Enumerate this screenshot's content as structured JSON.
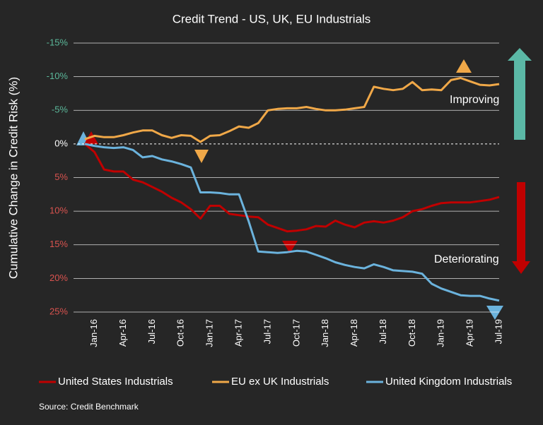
{
  "chart_data": {
    "type": "line",
    "title": "Credit Trend - US, UK, EU Industrials",
    "y_label": "Cumulative Change in Credit Risk (%)",
    "source": "Source: Credit Benchmark",
    "annotations": [
      "Improving",
      "Deteriorating"
    ],
    "categories": [
      null,
      "Jan-16",
      null,
      null,
      "Apr-16",
      null,
      null,
      "Jul-16",
      null,
      null,
      "Oct-16",
      null,
      null,
      "Jan-17",
      null,
      null,
      "Apr-17",
      null,
      null,
      "Jul-17",
      null,
      null,
      "Oct-17",
      null,
      null,
      "Jan-18",
      null,
      null,
      "Apr-18",
      null,
      null,
      "Jul-18",
      null,
      null,
      "Oct-18",
      null,
      null,
      "Jan-19",
      null,
      null,
      "Apr-19",
      null,
      null,
      "Jul-19"
    ],
    "series": [
      {
        "name": "United States Industrials",
        "color": "#c00000",
        "values": [
          0,
          1.2,
          3.8,
          4.1,
          4.1,
          5.3,
          5.7,
          6.4,
          7.1,
          8.0,
          8.7,
          9.7,
          11.1,
          9.2,
          9.2,
          10.4,
          10.6,
          10.8,
          10.9,
          12.0,
          12.5,
          13.0,
          12.9,
          12.7,
          12.2,
          12.3,
          11.4,
          12.0,
          12.4,
          11.7,
          11.5,
          11.7,
          11.4,
          10.9,
          10.0,
          9.7,
          9.2,
          8.8,
          8.7,
          8.7,
          8.7,
          8.5,
          8.3,
          7.9
        ]
      },
      {
        "name": "EU ex UK Industrials",
        "color": "#f0a848",
        "values": [
          -0.7,
          -1.2,
          -1.0,
          -1.0,
          -1.3,
          -1.7,
          -2.0,
          -2.0,
          -1.3,
          -0.9,
          -1.3,
          -1.2,
          -0.3,
          -1.2,
          -1.3,
          -1.9,
          -2.6,
          -2.4,
          -3.1,
          -5.0,
          -5.2,
          -5.3,
          -5.3,
          -5.5,
          -5.2,
          -5.0,
          -5.0,
          -5.1,
          -5.3,
          -5.5,
          -8.5,
          -8.2,
          -8.0,
          -8.2,
          -9.2,
          -8.0,
          -8.1,
          -8.0,
          -9.5,
          -9.8,
          -9.3,
          -8.8,
          -8.7,
          -8.9
        ]
      },
      {
        "name": "United Kingdom Industrials",
        "color": "#6bb3dd",
        "values": [
          0,
          0.3,
          0.5,
          0.6,
          0.5,
          0.9,
          2.0,
          1.8,
          2.3,
          2.6,
          3.0,
          3.5,
          7.2,
          7.2,
          7.3,
          7.5,
          7.5,
          11.5,
          16.0,
          16.1,
          16.2,
          16.1,
          15.9,
          16.0,
          16.5,
          17.0,
          17.6,
          18.0,
          18.3,
          18.5,
          17.9,
          18.3,
          18.8,
          18.9,
          19.0,
          19.3,
          20.8,
          21.5,
          22.0,
          22.5,
          22.6,
          22.6,
          23.0,
          23.3
        ]
      }
    ],
    "ylim": [
      25,
      -15
    ],
    "yticks": [
      {
        "value": -15,
        "label": "-15%"
      },
      {
        "value": -10,
        "label": "-10%"
      },
      {
        "value": -5,
        "label": "-5%"
      },
      {
        "value": 0,
        "label": "0%"
      },
      {
        "value": 5,
        "label": "5%"
      },
      {
        "value": 10,
        "label": "10%"
      },
      {
        "value": 15,
        "label": "15%"
      },
      {
        "value": 20,
        "label": "20%"
      },
      {
        "value": 25,
        "label": "25%"
      }
    ],
    "grid": true
  }
}
